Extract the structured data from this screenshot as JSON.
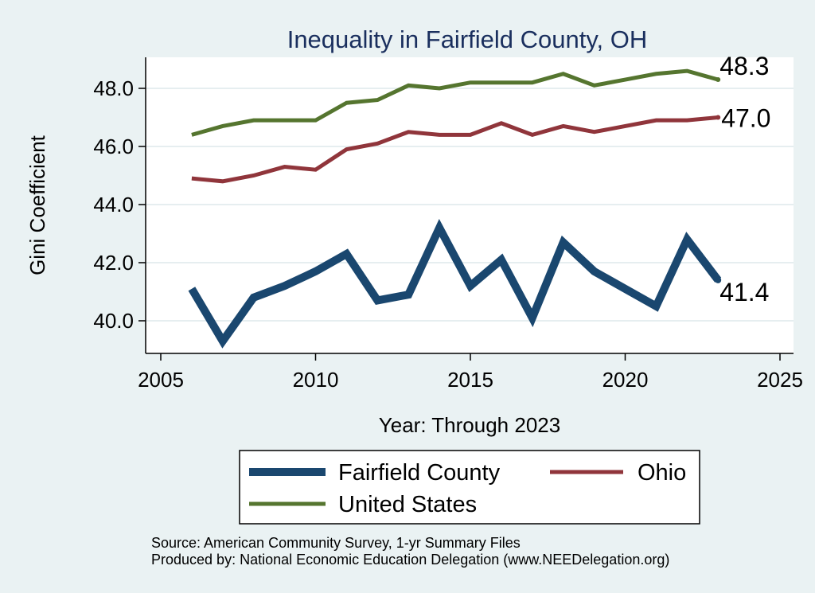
{
  "chart_data": {
    "type": "line",
    "title": "Inequality in Fairfield County, OH",
    "xlabel": "Year: Through 2023",
    "ylabel": "Gini Coefficient",
    "xlim": [
      2005,
      2025
    ],
    "ylim": [
      38.8,
      48.8
    ],
    "x_ticks": [
      2005,
      2010,
      2015,
      2020,
      2025
    ],
    "y_ticks": [
      40.0,
      42.0,
      44.0,
      46.0,
      48.0
    ],
    "y_tick_labels": [
      "40.0",
      "42.0",
      "44.0",
      "46.0",
      "48.0"
    ],
    "grid": true,
    "x": [
      2006,
      2007,
      2008,
      2009,
      2010,
      2011,
      2012,
      2013,
      2014,
      2015,
      2016,
      2017,
      2018,
      2019,
      2020,
      2021,
      2022,
      2023
    ],
    "series": [
      {
        "name": "Fairfield County",
        "color": "#1a476f",
        "values": [
          41.1,
          39.3,
          40.8,
          41.2,
          41.7,
          42.3,
          40.7,
          40.9,
          43.2,
          41.2,
          42.1,
          40.1,
          42.7,
          41.7,
          41.1,
          40.5,
          42.8,
          41.4
        ],
        "end_label": "41.4"
      },
      {
        "name": "Ohio",
        "color": "#90353b",
        "values": [
          44.9,
          44.8,
          45.0,
          45.3,
          45.2,
          45.9,
          46.1,
          46.5,
          46.4,
          46.4,
          46.8,
          46.4,
          46.7,
          46.5,
          46.7,
          46.9,
          46.9,
          47.0
        ],
        "end_label": "47.0"
      },
      {
        "name": "United States",
        "color": "#55752f",
        "values": [
          46.4,
          46.7,
          46.9,
          46.9,
          46.9,
          47.5,
          47.6,
          48.1,
          48.0,
          48.2,
          48.2,
          48.2,
          48.5,
          48.1,
          48.3,
          48.5,
          48.6,
          48.3
        ],
        "end_label": "48.3"
      }
    ],
    "legend": {
      "position": "bottom",
      "entries": [
        "Fairfield County",
        "Ohio",
        "United States"
      ]
    },
    "notes": [
      "Source: American Community Survey, 1-yr Summary Files",
      "Produced by: National Economic Education Delegation (www.NEEDelegation.org)"
    ]
  }
}
